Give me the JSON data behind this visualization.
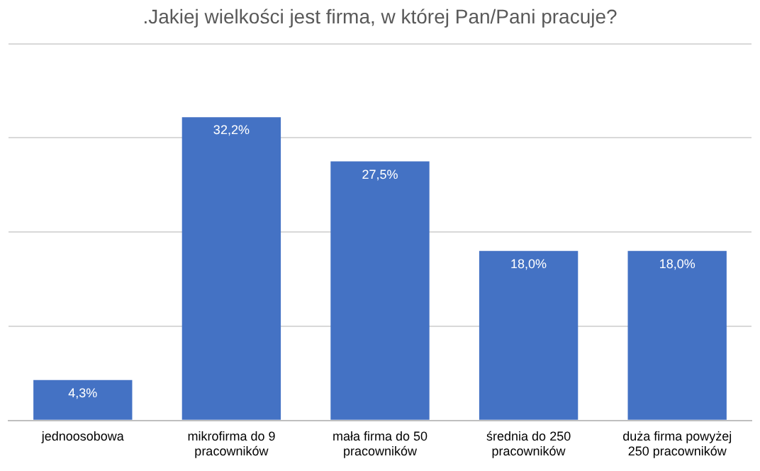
{
  "chart_data": {
    "type": "bar",
    "title": ".Jakiej wielkości jest firma, w której Pan/Pani pracuje?",
    "categories": [
      "jednoosobowa",
      "mikrofirma do 9 pracowników",
      "mała firma do 50 pracowników",
      "średnia do 250 pracowników",
      "duża firma powyżej 250 pracowników"
    ],
    "values": [
      4.3,
      32.2,
      27.5,
      18.0,
      18.0
    ],
    "value_labels": [
      "4,3%",
      "32,2%",
      "27,5%",
      "18,0%",
      "18,0%"
    ],
    "color": "#4472c4",
    "ylim": [
      0,
      40
    ],
    "yticks": [
      0,
      10,
      20,
      30,
      40
    ],
    "grid": "y",
    "tick_labels": "x",
    "legend": false
  }
}
